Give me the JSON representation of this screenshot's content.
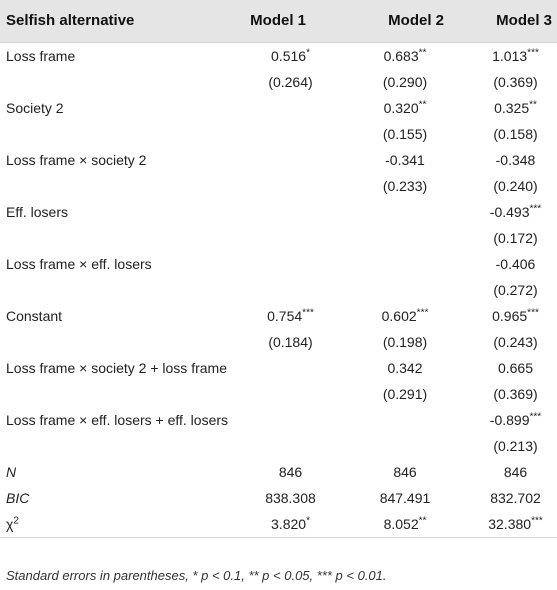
{
  "header": {
    "label": "Selfish alternative",
    "model1": "Model 1",
    "model2": "Model 2",
    "model3": "Model 3"
  },
  "rows": [
    {
      "label": "Loss frame",
      "italic": false,
      "m1": "0.516",
      "m1s": "*",
      "m2": "0.683",
      "m2s": "**",
      "m3": "1.013",
      "m3s": "***"
    },
    {
      "label": "",
      "italic": false,
      "m1": "(0.264)",
      "m1s": "",
      "m2": "(0.290)",
      "m2s": "",
      "m3": "(0.369)",
      "m3s": ""
    },
    {
      "label": "Society 2",
      "italic": false,
      "m1": "",
      "m1s": "",
      "m2": "0.320",
      "m2s": "**",
      "m3": "0.325",
      "m3s": "**"
    },
    {
      "label": "",
      "italic": false,
      "m1": "",
      "m1s": "",
      "m2": "(0.155)",
      "m2s": "",
      "m3": "(0.158)",
      "m3s": ""
    },
    {
      "label": "Loss frame × society 2",
      "italic": false,
      "m1": "",
      "m1s": "",
      "m2": "-0.341",
      "m2s": "",
      "m3": "-0.348",
      "m3s": ""
    },
    {
      "label": "",
      "italic": false,
      "m1": "",
      "m1s": "",
      "m2": "(0.233)",
      "m2s": "",
      "m3": "(0.240)",
      "m3s": ""
    },
    {
      "label": "Eff. losers",
      "italic": false,
      "m1": "",
      "m1s": "",
      "m2": "",
      "m2s": "",
      "m3": "-0.493",
      "m3s": "***"
    },
    {
      "label": "",
      "italic": false,
      "m1": "",
      "m1s": "",
      "m2": "",
      "m2s": "",
      "m3": "(0.172)",
      "m3s": ""
    },
    {
      "label": "Loss frame × eff. losers",
      "italic": false,
      "m1": "",
      "m1s": "",
      "m2": "",
      "m2s": "",
      "m3": "-0.406",
      "m3s": ""
    },
    {
      "label": "",
      "italic": false,
      "m1": "",
      "m1s": "",
      "m2": "",
      "m2s": "",
      "m3": "(0.272)",
      "m3s": ""
    },
    {
      "label": "Constant",
      "italic": false,
      "m1": "0.754",
      "m1s": "***",
      "m2": "0.602",
      "m2s": "***",
      "m3": "0.965",
      "m3s": "***"
    },
    {
      "label": "",
      "italic": false,
      "m1": "(0.184)",
      "m1s": "",
      "m2": "(0.198)",
      "m2s": "",
      "m3": "(0.243)",
      "m3s": ""
    },
    {
      "label": "Loss frame × society 2 + loss frame",
      "italic": false,
      "m1": "",
      "m1s": "",
      "m2": "0.342",
      "m2s": "",
      "m3": "0.665",
      "m3s": ""
    },
    {
      "label": "",
      "italic": false,
      "m1": "",
      "m1s": "",
      "m2": "(0.291)",
      "m2s": "",
      "m3": "(0.369)",
      "m3s": ""
    },
    {
      "label": "Loss frame × eff. losers + eff. losers",
      "italic": false,
      "m1": "",
      "m1s": "",
      "m2": "",
      "m2s": "",
      "m3": "-0.899",
      "m3s": "***"
    },
    {
      "label": "",
      "italic": false,
      "m1": "",
      "m1s": "",
      "m2": "",
      "m2s": "",
      "m3": "(0.213)",
      "m3s": ""
    },
    {
      "label": "N",
      "italic": true,
      "m1": "846",
      "m1s": "",
      "m2": "846",
      "m2s": "",
      "m3": "846",
      "m3s": ""
    },
    {
      "label": "BIC",
      "italic": true,
      "m1": "838.308",
      "m1s": "",
      "m2": "847.491",
      "m2s": "",
      "m3": "832.702",
      "m3s": ""
    },
    {
      "label": "χ",
      "labelSup": "2",
      "italic": false,
      "m1": "3.820",
      "m1s": "*",
      "m2": "8.052",
      "m2s": "**",
      "m3": "32.380",
      "m3s": "***"
    }
  ],
  "note": "Standard errors in parentheses, * p < 0.1, ** p < 0.05, *** p < 0.01."
}
